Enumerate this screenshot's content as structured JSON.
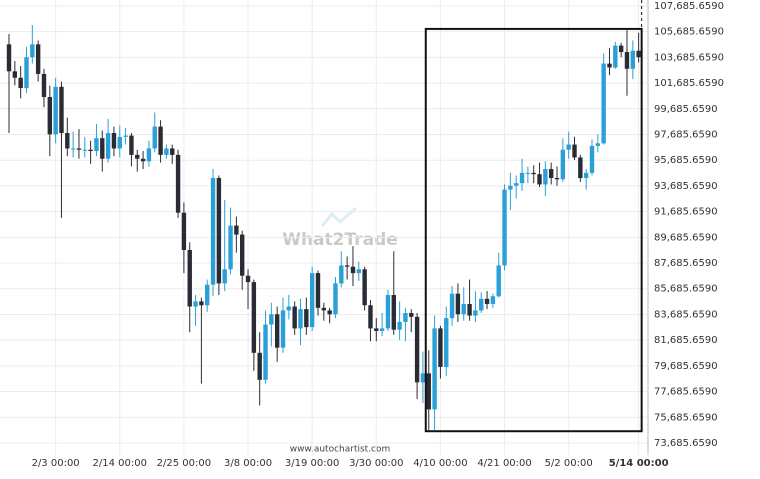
{
  "chart_data": {
    "type": "candlestick",
    "x": [
      "1/26 00:00",
      "1/27 00:00",
      "1/28 00:00",
      "1/29 00:00",
      "1/30 00:00",
      "1/31 00:00",
      "2/1 00:00",
      "2/2 00:00",
      "2/3 00:00",
      "2/4 00:00",
      "2/5 00:00",
      "2/6 00:00",
      "2/7 00:00",
      "2/8 00:00",
      "2/9 00:00",
      "2/10 00:00",
      "2/11 00:00",
      "2/12 00:00",
      "2/13 00:00",
      "2/14 00:00",
      "2/15 00:00",
      "2/16 00:00",
      "2/17 00:00",
      "2/18 00:00",
      "2/19 00:00",
      "2/20 00:00",
      "2/21 00:00",
      "2/22 00:00",
      "2/23 00:00",
      "2/24 00:00",
      "2/25 00:00",
      "2/26 00:00",
      "2/27 00:00",
      "2/28 00:00",
      "3/1 00:00",
      "3/2 00:00",
      "3/3 00:00",
      "3/4 00:00",
      "3/5 00:00",
      "3/6 00:00",
      "3/7 00:00",
      "3/8 00:00",
      "3/9 00:00",
      "3/10 00:00",
      "3/11 00:00",
      "3/12 00:00",
      "3/13 00:00",
      "3/14 00:00",
      "3/15 00:00",
      "3/16 00:00",
      "3/17 00:00",
      "3/18 00:00",
      "3/19 00:00",
      "3/20 00:00",
      "3/21 00:00",
      "3/22 00:00",
      "3/23 00:00",
      "3/24 00:00",
      "3/25 00:00",
      "3/26 00:00",
      "3/27 00:00",
      "3/28 00:00",
      "3/29 00:00",
      "3/30 00:00",
      "3/31 00:00",
      "4/1 00:00",
      "4/2 00:00",
      "4/3 00:00",
      "4/4 00:00",
      "4/5 00:00",
      "4/6 00:00",
      "4/7 00:00",
      "4/8 00:00",
      "4/9 00:00",
      "4/10 00:00",
      "4/11 00:00",
      "4/12 00:00",
      "4/13 00:00",
      "4/14 00:00",
      "4/15 00:00",
      "4/16 00:00",
      "4/17 00:00",
      "4/18 00:00",
      "4/19 00:00",
      "4/20 00:00",
      "4/21 00:00",
      "4/22 00:00",
      "4/23 00:00",
      "4/24 00:00",
      "4/25 00:00",
      "4/26 00:00",
      "4/27 00:00",
      "4/28 00:00",
      "4/29 00:00",
      "4/30 00:00",
      "5/1 00:00",
      "5/2 00:00",
      "5/3 00:00",
      "5/4 00:00",
      "5/5 00:00",
      "5/6 00:00",
      "5/7 00:00",
      "5/8 00:00",
      "5/9 00:00",
      "5/10 00:00",
      "5/11 00:00",
      "5/12 00:00",
      "5/13 00:00",
      "5/14 00:00"
    ],
    "open": [
      104700,
      102600,
      102100,
      101300,
      103700,
      104700,
      102400,
      100600,
      97700,
      101400,
      97800,
      96600,
      96600,
      96500,
      96500,
      96400,
      97400,
      95800,
      97800,
      96600,
      97500,
      97600,
      96100,
      95800,
      95600,
      96600,
      98300,
      96100,
      96600,
      96100,
      91600,
      88700,
      84300,
      84700,
      84400,
      86000,
      94300,
      86100,
      87200,
      90600,
      89900,
      86700,
      86200,
      80700,
      78600,
      82900,
      83700,
      81100,
      84000,
      84300,
      82600,
      84100,
      82700,
      86900,
      84200,
      84000,
      83700,
      86100,
      87500,
      87400,
      86900,
      87200,
      84400,
      82600,
      82400,
      82600,
      85200,
      82500,
      83100,
      83800,
      83500,
      78400,
      79100,
      76300,
      82600,
      79600,
      83400,
      85300,
      83700,
      84500,
      83600,
      84000,
      84900,
      84500,
      85100,
      87500,
      93400,
      93700,
      93900,
      94700,
      94700,
      94600,
      93800,
      95000,
      94300,
      94200,
      96500,
      96900,
      95900,
      94300,
      94700,
      96800,
      97000,
      103200,
      102900,
      104600,
      104100,
      102800,
      104200
    ],
    "high": [
      105500,
      103400,
      103000,
      104500,
      106200,
      105000,
      102800,
      101500,
      102100,
      101800,
      99000,
      97900,
      98100,
      97500,
      97200,
      98500,
      98000,
      98900,
      98300,
      98400,
      98200,
      97800,
      96500,
      96400,
      97200,
      99400,
      98800,
      96900,
      96900,
      96500,
      92400,
      89300,
      85200,
      85000,
      86400,
      95000,
      94500,
      92600,
      92000,
      91300,
      90200,
      87200,
      86400,
      82300,
      84000,
      84600,
      84300,
      85000,
      85200,
      84700,
      84900,
      85000,
      87400,
      87100,
      84600,
      84200,
      86600,
      88600,
      88200,
      89000,
      87800,
      87400,
      84800,
      83400,
      83800,
      85600,
      88600,
      84700,
      84200,
      84100,
      83800,
      80800,
      80900,
      83600,
      82800,
      84300,
      85900,
      86100,
      85800,
      86400,
      85500,
      85400,
      85500,
      85300,
      88500,
      93800,
      94700,
      94500,
      95800,
      95200,
      95300,
      95500,
      95600,
      95500,
      95200,
      97400,
      97900,
      97500,
      96100,
      95000,
      97300,
      97700,
      104000,
      104400,
      104900,
      104800,
      105800,
      105000,
      105600
    ],
    "low": [
      97800,
      101500,
      100500,
      100900,
      103200,
      101800,
      99800,
      96000,
      97000,
      91200,
      96000,
      95900,
      95800,
      95900,
      95400,
      96000,
      94800,
      95500,
      96000,
      95900,
      96900,
      95200,
      94800,
      95000,
      95200,
      96300,
      95500,
      95800,
      95400,
      91200,
      86900,
      82300,
      82800,
      78300,
      83900,
      85100,
      85200,
      85500,
      86800,
      88500,
      85600,
      84100,
      79300,
      76600,
      78300,
      81200,
      80000,
      80700,
      83300,
      82100,
      81300,
      82100,
      82400,
      83600,
      83200,
      83000,
      83400,
      85800,
      86400,
      85900,
      86300,
      84000,
      81600,
      81600,
      82000,
      82400,
      82100,
      81700,
      81600,
      82300,
      77100,
      76800,
      74600,
      74700,
      78700,
      78900,
      82800,
      83100,
      83200,
      83200,
      83100,
      83800,
      84100,
      84200,
      85000,
      87100,
      91800,
      92700,
      93300,
      93900,
      93900,
      93600,
      92900,
      93800,
      93700,
      94000,
      95800,
      95700,
      94000,
      93400,
      94500,
      96300,
      96900,
      102300,
      102800,
      103700,
      100700,
      102000,
      103300
    ],
    "close": [
      102600,
      102100,
      101300,
      103700,
      104700,
      102400,
      100600,
      97700,
      101400,
      97800,
      96600,
      96600,
      96500,
      96500,
      96400,
      97400,
      95800,
      97800,
      96600,
      97500,
      97600,
      96100,
      95800,
      95600,
      96600,
      98300,
      96100,
      96600,
      96100,
      91600,
      88700,
      84300,
      84700,
      84400,
      86000,
      94300,
      86100,
      87200,
      90600,
      89900,
      86700,
      86200,
      80700,
      78600,
      82900,
      83700,
      81100,
      84000,
      84300,
      82600,
      84100,
      82700,
      86900,
      84200,
      84000,
      83700,
      86100,
      87500,
      87400,
      86900,
      87200,
      84400,
      82600,
      82400,
      82600,
      85200,
      82500,
      83100,
      83800,
      83500,
      78400,
      79100,
      76300,
      82600,
      79600,
      83400,
      85300,
      83700,
      84500,
      83600,
      84000,
      84900,
      84500,
      85100,
      87500,
      93400,
      93700,
      93900,
      94700,
      94700,
      94600,
      93800,
      95000,
      94300,
      94200,
      96500,
      96900,
      95900,
      94300,
      94700,
      96800,
      97000,
      103200,
      102900,
      104600,
      104100,
      102800,
      104200,
      103700
    ],
    "up_color": "#2a9fd8",
    "down_color": "#2b2b33",
    "xticks": [
      "2/3 00:00",
      "2/14 00:00",
      "2/25 00:00",
      "3/8 00:00",
      "3/19 00:00",
      "3/30 00:00",
      "4/10 00:00",
      "4/21 00:00",
      "5/2 00:00",
      "5/14 00:00"
    ],
    "ylim": [
      72750,
      108150
    ],
    "yticks": [
      {
        "value": 73685.659,
        "label": "73,685.6590"
      },
      {
        "value": 75685.659,
        "label": "75,685.6590"
      },
      {
        "value": 77685.659,
        "label": "77,685.6590"
      },
      {
        "value": 79685.659,
        "label": "79,685.6590"
      },
      {
        "value": 81685.659,
        "label": "81,685.6590"
      },
      {
        "value": 83685.659,
        "label": "83,685.6590"
      },
      {
        "value": 85685.659,
        "label": "85,685.6590"
      },
      {
        "value": 87685.659,
        "label": "87,685.6590"
      },
      {
        "value": 89685.659,
        "label": "89,685.6590"
      },
      {
        "value": 91685.659,
        "label": "91,685.6590"
      },
      {
        "value": 93685.659,
        "label": "93,685.6590"
      },
      {
        "value": 95685.659,
        "label": "95,685.6590"
      },
      {
        "value": 97685.659,
        "label": "97,685.6590"
      },
      {
        "value": 99685.659,
        "label": "99,685.6590"
      },
      {
        "value": 101685.659,
        "label": "101,685.6590"
      },
      {
        "value": 103685.659,
        "label": "103,685.6590"
      },
      {
        "value": 105685.659,
        "label": "105,685.6590"
      },
      {
        "value": 107685.659,
        "label": "107,685.6590"
      }
    ],
    "grid": true,
    "box": {
      "x": [
        "4/8 00:00",
        "5/14 00:00"
      ],
      "y": [
        74600,
        105900
      ]
    },
    "watermark": "What2Trade",
    "footer": "www.autochartist.com"
  }
}
